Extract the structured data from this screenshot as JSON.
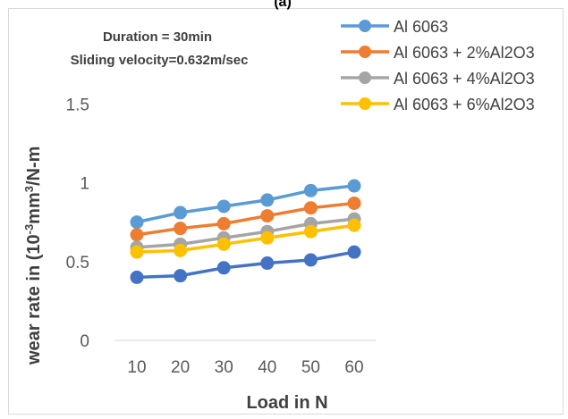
{
  "figure_label": "(a)",
  "colors": {
    "axis": "#d9d9d9",
    "text": "#595959",
    "series": [
      "#5b9bd5",
      "#ed7d31",
      "#a5a5a5",
      "#ffc000",
      "#4472c4"
    ]
  },
  "chart_data": {
    "type": "line",
    "title": "",
    "xlabel": "Load in N",
    "ylabel_parts": [
      "wear rate in (10",
      "-3",
      "mm",
      "3",
      "/N-m"
    ],
    "categories": [
      "10",
      "20",
      "30",
      "40",
      "50",
      "60"
    ],
    "y_ticks": [
      "0",
      "0.5",
      "1",
      "1.5"
    ],
    "ylim": [
      0,
      2
    ],
    "grid": false,
    "legend_position": "top-right",
    "annotations": [
      "Duration = 30min",
      "Sliding velocity=0.632m/sec"
    ],
    "series": [
      {
        "name": "Al 6063",
        "values": [
          0.75,
          0.81,
          0.85,
          0.89,
          0.95,
          0.98
        ]
      },
      {
        "name": "Al 6063 + 2%Al2O3",
        "values": [
          0.67,
          0.71,
          0.74,
          0.79,
          0.84,
          0.87
        ]
      },
      {
        "name": "Al 6063 + 4%Al2O3",
        "values": [
          0.59,
          0.61,
          0.65,
          0.69,
          0.74,
          0.77
        ]
      },
      {
        "name": "Al 6063 + 6%Al2O3",
        "values": [
          0.56,
          0.57,
          0.61,
          0.65,
          0.69,
          0.73
        ]
      },
      {
        "name": "",
        "values": [
          0.4,
          0.41,
          0.46,
          0.49,
          0.51,
          0.56
        ]
      }
    ]
  }
}
